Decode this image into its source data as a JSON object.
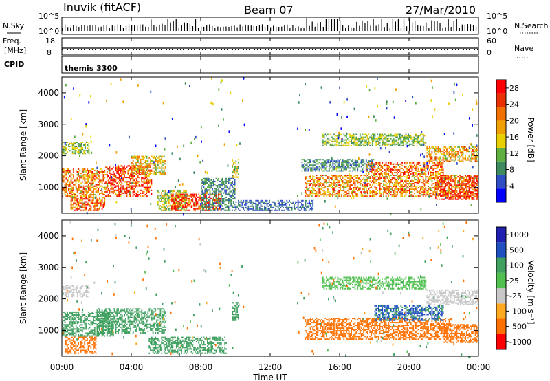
{
  "header": {
    "station": "Inuvik (fitACF)",
    "beam": "Beam 07",
    "date": "27/Mar/2010"
  },
  "panels": {
    "nsky": {
      "label": "N.Sky",
      "right_label": "N.Search",
      "left_ticks": [
        "10^5",
        "10^0"
      ],
      "right_ticks": [
        "10^5",
        "10^0"
      ]
    },
    "freq": {
      "label_top": "Freq.",
      "label_unit": "[MHz]",
      "right_label": "Nave",
      "left_ticks": [
        "18",
        "8"
      ],
      "right_ticks": [
        "60",
        "0"
      ]
    },
    "cpid": {
      "label": "CPID",
      "program": "themis 3300"
    }
  },
  "time_ticks": [
    "00:00",
    "04:00",
    "08:00",
    "12:00",
    "16:00",
    "20:00",
    "00:00"
  ],
  "time_label": "Time UT",
  "range_ticks": [
    "1000",
    "2000",
    "3000",
    "4000"
  ],
  "range_label": "Slant Range [km]",
  "colors": {
    "power": [
      "#0000ff",
      "#2f4ec4",
      "#3d8b5e",
      "#5fb040",
      "#e8d000",
      "#f0a000",
      "#f07000",
      "#e83000",
      "#ff0000"
    ],
    "velocity": [
      "#ff0000",
      "#ff7000",
      "#ffaa20",
      "#c8c8c8",
      "#50c050",
      "#40a060",
      "#2050c0",
      "#2020b0"
    ]
  },
  "chart_data": [
    {
      "type": "heatmap",
      "name": "power",
      "ylabel": "Slant Range [km]",
      "xlabel": "",
      "xlim": [
        "00:00",
        "24:00"
      ],
      "ylim": [
        180,
        4500
      ],
      "colorbar_label": "Power [dB]",
      "colorbar_ticks": [
        "4",
        "8",
        "12",
        "16",
        "20",
        "24",
        "28"
      ],
      "colorbar_range": [
        0,
        30
      ],
      "regions": [
        {
          "t0": 0.0,
          "t1": 1.6,
          "r0": 2050,
          "r1": 2450,
          "value": 12
        },
        {
          "t0": 0.0,
          "t1": 2.5,
          "r0": 700,
          "r1": 1600,
          "value": 20
        },
        {
          "t0": 0.5,
          "t1": 2.5,
          "r0": 250,
          "r1": 700,
          "value": 22
        },
        {
          "t0": 2.5,
          "t1": 5.2,
          "r0": 700,
          "r1": 1700,
          "value": 26
        },
        {
          "t0": 4.0,
          "t1": 6.0,
          "r0": 1400,
          "r1": 2000,
          "value": 16
        },
        {
          "t0": 5.5,
          "t1": 7.2,
          "r0": 250,
          "r1": 900,
          "value": 14
        },
        {
          "t0": 6.3,
          "t1": 9.2,
          "r0": 250,
          "r1": 800,
          "value": 27
        },
        {
          "t0": 8.0,
          "t1": 10.0,
          "r0": 250,
          "r1": 1300,
          "value": 8
        },
        {
          "t0": 9.8,
          "t1": 10.2,
          "r0": 1300,
          "r1": 1900,
          "value": 14
        },
        {
          "t0": 10.0,
          "t1": 14.5,
          "r0": 250,
          "r1": 600,
          "value": 6
        },
        {
          "t0": 13.8,
          "t1": 18.0,
          "r0": 1500,
          "r1": 1900,
          "value": 8
        },
        {
          "t0": 14.0,
          "t1": 24.0,
          "r0": 700,
          "r1": 1400,
          "value": 20
        },
        {
          "t0": 15.0,
          "t1": 21.0,
          "r0": 2300,
          "r1": 2700,
          "value": 12
        },
        {
          "t0": 17.5,
          "t1": 22.0,
          "r0": 1400,
          "r1": 1800,
          "value": 22
        },
        {
          "t0": 21.5,
          "t1": 24.0,
          "r0": 600,
          "r1": 1400,
          "value": 27
        },
        {
          "t0": 21.0,
          "t1": 24.0,
          "r0": 1800,
          "r1": 2300,
          "value": 18
        }
      ]
    },
    {
      "type": "heatmap",
      "name": "velocity",
      "ylabel": "Slant Range [km]",
      "xlabel": "Time UT",
      "xlim": [
        "00:00",
        "24:00"
      ],
      "ylim": [
        180,
        4500
      ],
      "colorbar_label": "Velocity [m s⁻¹]",
      "colorbar_ticks": [
        "1000",
        "500",
        "100",
        "25",
        "-25",
        "-100",
        "-500",
        "-1000"
      ],
      "regions": [
        {
          "t0": 0.0,
          "t1": 1.6,
          "r0": 2050,
          "r1": 2450,
          "value": 0
        },
        {
          "t0": 0.0,
          "t1": 3.0,
          "r0": 800,
          "r1": 1600,
          "value": 200
        },
        {
          "t0": 0.2,
          "t1": 2.0,
          "r0": 250,
          "r1": 800,
          "value": -300
        },
        {
          "t0": 2.0,
          "t1": 6.0,
          "r0": 900,
          "r1": 1700,
          "value": 300
        },
        {
          "t0": 5.0,
          "t1": 9.5,
          "r0": 250,
          "r1": 800,
          "value": 300
        },
        {
          "t0": 9.8,
          "t1": 10.2,
          "r0": 1300,
          "r1": 1900,
          "value": 300
        },
        {
          "t0": 14.0,
          "t1": 22.5,
          "r0": 700,
          "r1": 1400,
          "value": -300
        },
        {
          "t0": 15.0,
          "t1": 21.0,
          "r0": 2300,
          "r1": 2700,
          "value": 60
        },
        {
          "t0": 18.0,
          "t1": 22.0,
          "r0": 1300,
          "r1": 1800,
          "value": 600
        },
        {
          "t0": 22.0,
          "t1": 24.0,
          "r0": 600,
          "r1": 1200,
          "value": -300
        },
        {
          "t0": 21.0,
          "t1": 24.0,
          "r0": 1800,
          "r1": 2300,
          "value": 0
        }
      ]
    }
  ]
}
